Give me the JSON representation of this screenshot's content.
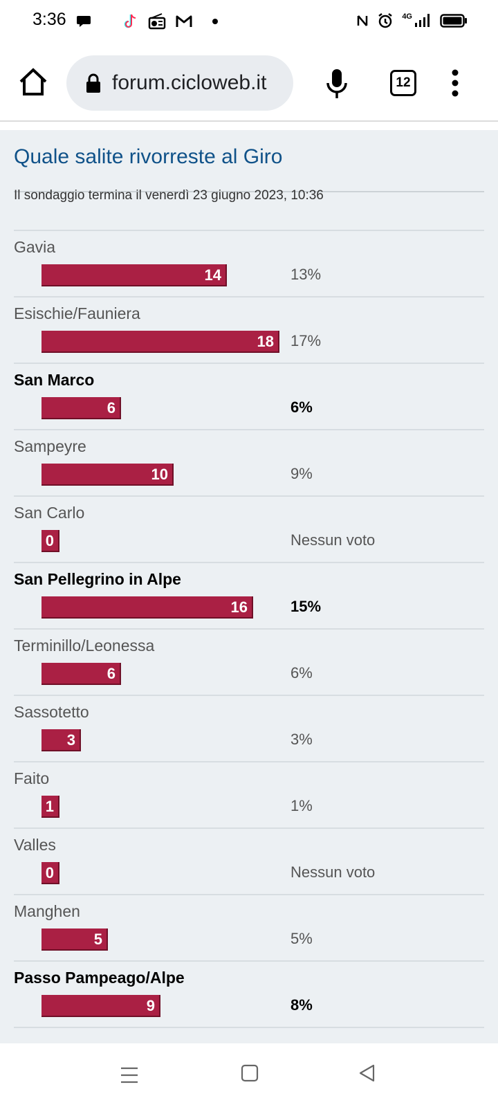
{
  "status": {
    "time": "3:36",
    "network": "4G"
  },
  "browser": {
    "url": "forum.cicloweb.it",
    "tab_count": "12"
  },
  "poll": {
    "title": "Quale salite rivorreste al Giro",
    "ends_text": "Il sondaggio termina il venerdì 23 giugno 2023, 10:36",
    "max_votes": 18,
    "options": [
      {
        "label": "Gavia",
        "votes": 14,
        "votes_text": "14",
        "percent": "13%",
        "voted": false
      },
      {
        "label": "Esischie/Fauniera",
        "votes": 18,
        "votes_text": "18",
        "percent": "17%",
        "voted": false
      },
      {
        "label": "San Marco",
        "votes": 6,
        "votes_text": "6",
        "percent": "6%",
        "voted": true
      },
      {
        "label": "Sampeyre",
        "votes": 10,
        "votes_text": "10",
        "percent": "9%",
        "voted": false
      },
      {
        "label": "San Carlo",
        "votes": 0,
        "votes_text": "0",
        "percent": "Nessun voto",
        "voted": false
      },
      {
        "label": "San Pellegrino in Alpe",
        "votes": 16,
        "votes_text": "16",
        "percent": "15%",
        "voted": true
      },
      {
        "label": "Terminillo/Leonessa",
        "votes": 6,
        "votes_text": "6",
        "percent": "6%",
        "voted": false
      },
      {
        "label": "Sassotetto",
        "votes": 3,
        "votes_text": "3",
        "percent": "3%",
        "voted": false
      },
      {
        "label": "Faito",
        "votes": 1,
        "votes_text": "1",
        "percent": "1%",
        "voted": false
      },
      {
        "label": "Valles",
        "votes": 0,
        "votes_text": "0",
        "percent": "Nessun voto",
        "voted": false
      },
      {
        "label": "Manghen",
        "votes": 5,
        "votes_text": "5",
        "percent": "5%",
        "voted": false
      },
      {
        "label": "Passo Pampeago/Alpe",
        "votes": 9,
        "votes_text": "9",
        "percent": "8%",
        "voted": true
      }
    ]
  },
  "colors": {
    "bar": "#aa2044",
    "title": "#105289",
    "panel_bg": "#ecf0f3"
  }
}
